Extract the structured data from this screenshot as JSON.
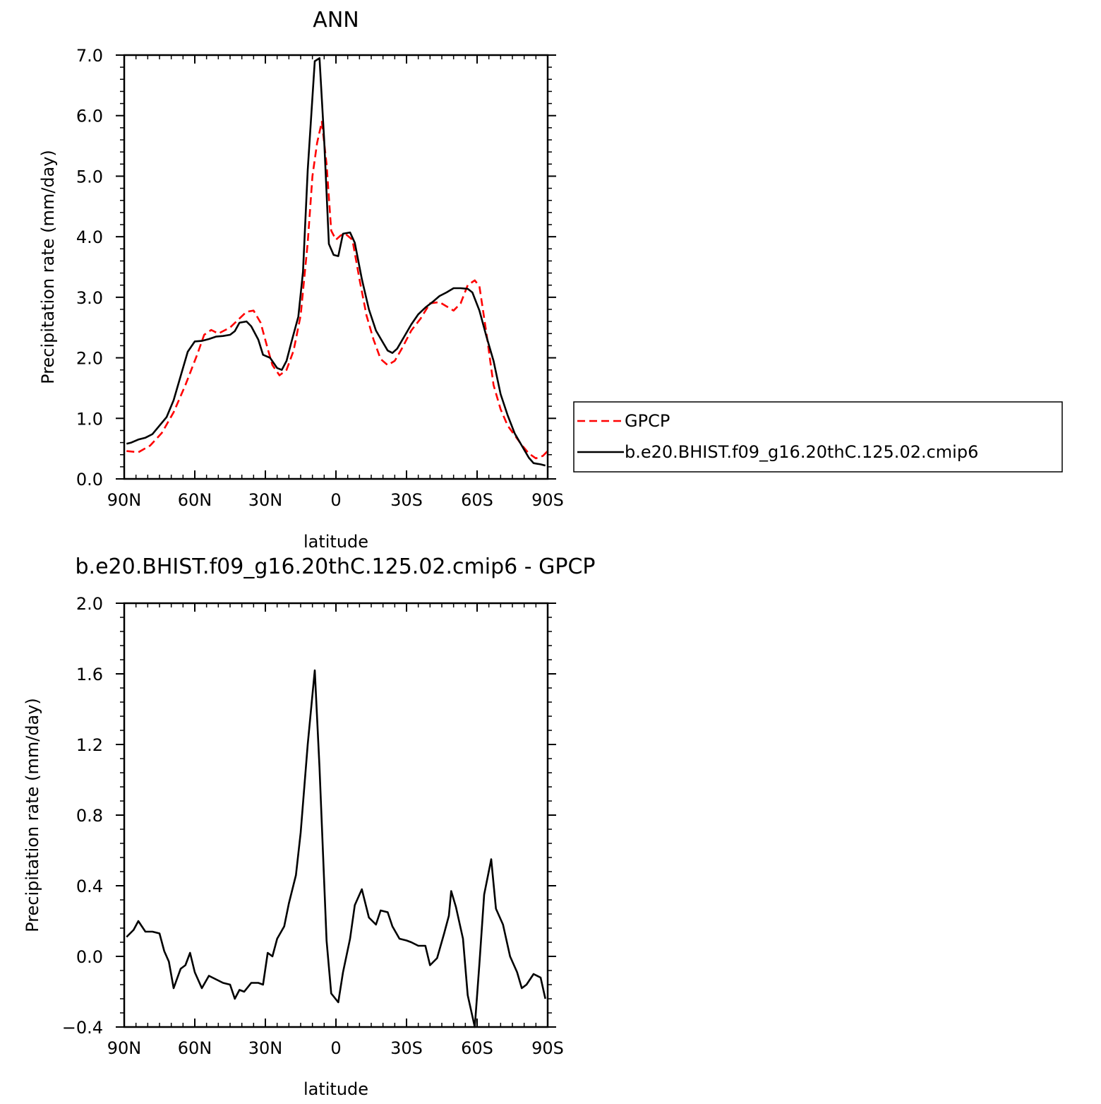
{
  "chart_data": [
    {
      "type": "line",
      "title": "ANN",
      "xlabel": "latitude",
      "ylabel": "Precipitation rate (mm/day)",
      "xlim": [
        90,
        -90
      ],
      "ylim": [
        0,
        7
      ],
      "xticks": [
        {
          "v": 90,
          "label": "90N"
        },
        {
          "v": 60,
          "label": "60N"
        },
        {
          "v": 30,
          "label": "30N"
        },
        {
          "v": 0,
          "label": "0"
        },
        {
          "v": -30,
          "label": "30S"
        },
        {
          "v": -60,
          "label": "60S"
        },
        {
          "v": -90,
          "label": "90S"
        }
      ],
      "yticks": [
        {
          "v": 0,
          "label": "0.0"
        },
        {
          "v": 1,
          "label": "1.0"
        },
        {
          "v": 2,
          "label": "2.0"
        },
        {
          "v": 3,
          "label": "3.0"
        },
        {
          "v": 4,
          "label": "4.0"
        },
        {
          "v": 5,
          "label": "5.0"
        },
        {
          "v": 6,
          "label": "6.0"
        },
        {
          "v": 7,
          "label": "7.0"
        }
      ],
      "legend": "right",
      "series": [
        {
          "name": "GPCP",
          "color": "#ff0000",
          "dash": "dashed",
          "points": [
            [
              89,
              0.46
            ],
            [
              84,
              0.44
            ],
            [
              79,
              0.55
            ],
            [
              74,
              0.76
            ],
            [
              69,
              1.1
            ],
            [
              64,
              1.55
            ],
            [
              59,
              2.05
            ],
            [
              56,
              2.38
            ],
            [
              53,
              2.46
            ],
            [
              50,
              2.4
            ],
            [
              45,
              2.5
            ],
            [
              41,
              2.65
            ],
            [
              38,
              2.76
            ],
            [
              35,
              2.78
            ],
            [
              32,
              2.58
            ],
            [
              29,
              2.15
            ],
            [
              27,
              1.88
            ],
            [
              24,
              1.71
            ],
            [
              21,
              1.8
            ],
            [
              18,
              2.12
            ],
            [
              15,
              2.7
            ],
            [
              12,
              3.9
            ],
            [
              10,
              5.0
            ],
            [
              8,
              5.55
            ],
            [
              6,
              5.9
            ],
            [
              4,
              5.2
            ],
            [
              2,
              4.1
            ],
            [
              0,
              3.95
            ],
            [
              -2,
              4.02
            ],
            [
              -4,
              4.05
            ],
            [
              -7,
              3.95
            ],
            [
              -10,
              3.3
            ],
            [
              -13,
              2.7
            ],
            [
              -16,
              2.3
            ],
            [
              -19,
              1.98
            ],
            [
              -22,
              1.88
            ],
            [
              -25,
              1.95
            ],
            [
              -28,
              2.15
            ],
            [
              -32,
              2.45
            ],
            [
              -36,
              2.65
            ],
            [
              -40,
              2.9
            ],
            [
              -44,
              2.92
            ],
            [
              -47,
              2.85
            ],
            [
              -50,
              2.78
            ],
            [
              -53,
              2.9
            ],
            [
              -56,
              3.2
            ],
            [
              -59,
              3.28
            ],
            [
              -61,
              3.18
            ],
            [
              -64,
              2.4
            ],
            [
              -67,
              1.55
            ],
            [
              -70,
              1.15
            ],
            [
              -73,
              0.88
            ],
            [
              -76,
              0.72
            ],
            [
              -79,
              0.56
            ],
            [
              -82,
              0.42
            ],
            [
              -85,
              0.34
            ],
            [
              -88,
              0.38
            ],
            [
              -90,
              0.46
            ]
          ]
        },
        {
          "name": "b.e20.BHIST.f09_g16.20thC.125.02.cmip6",
          "color": "#000000",
          "dash": "solid",
          "points": [
            [
              89,
              0.58
            ],
            [
              87,
              0.6
            ],
            [
              84,
              0.65
            ],
            [
              81,
              0.68
            ],
            [
              78,
              0.74
            ],
            [
              75,
              0.88
            ],
            [
              72,
              1.02
            ],
            [
              69,
              1.3
            ],
            [
              66,
              1.7
            ],
            [
              63,
              2.1
            ],
            [
              60,
              2.27
            ],
            [
              57,
              2.28
            ],
            [
              54,
              2.31
            ],
            [
              51,
              2.35
            ],
            [
              48,
              2.36
            ],
            [
              45,
              2.38
            ],
            [
              43,
              2.44
            ],
            [
              41,
              2.58
            ],
            [
              38,
              2.6
            ],
            [
              36,
              2.52
            ],
            [
              33,
              2.3
            ],
            [
              31,
              2.05
            ],
            [
              28,
              2.0
            ],
            [
              25,
              1.83
            ],
            [
              23,
              1.8
            ],
            [
              21,
              1.95
            ],
            [
              19,
              2.25
            ],
            [
              16,
              2.68
            ],
            [
              14,
              3.42
            ],
            [
              12,
              5.1
            ],
            [
              9,
              6.9
            ],
            [
              7,
              6.95
            ],
            [
              5,
              5.6
            ],
            [
              3,
              3.88
            ],
            [
              1,
              3.7
            ],
            [
              -1,
              3.68
            ],
            [
              -3,
              4.05
            ],
            [
              -6,
              4.07
            ],
            [
              -8,
              3.9
            ],
            [
              -11,
              3.3
            ],
            [
              -14,
              2.8
            ],
            [
              -17,
              2.45
            ],
            [
              -20,
              2.25
            ],
            [
              -22,
              2.12
            ],
            [
              -24,
              2.08
            ],
            [
              -26,
              2.15
            ],
            [
              -29,
              2.35
            ],
            [
              -32,
              2.55
            ],
            [
              -35,
              2.72
            ],
            [
              -38,
              2.83
            ],
            [
              -41,
              2.92
            ],
            [
              -44,
              3.02
            ],
            [
              -47,
              3.08
            ],
            [
              -50,
              3.15
            ],
            [
              -53,
              3.15
            ],
            [
              -56,
              3.14
            ],
            [
              -58,
              3.08
            ],
            [
              -61,
              2.78
            ],
            [
              -64,
              2.35
            ],
            [
              -67,
              1.95
            ],
            [
              -70,
              1.4
            ],
            [
              -73,
              1.05
            ],
            [
              -76,
              0.75
            ],
            [
              -79,
              0.55
            ],
            [
              -82,
              0.35
            ],
            [
              -84,
              0.26
            ],
            [
              -87,
              0.24
            ],
            [
              -89,
              0.22
            ]
          ]
        }
      ]
    },
    {
      "type": "line",
      "title": "b.e20.BHIST.f09_g16.20thC.125.02.cmip6 - GPCP",
      "xlabel": "latitude",
      "ylabel": "Precipitation rate (mm/day)",
      "xlim": [
        90,
        -90
      ],
      "ylim": [
        -0.4,
        2.0
      ],
      "xticks": [
        {
          "v": 90,
          "label": "90N"
        },
        {
          "v": 60,
          "label": "60N"
        },
        {
          "v": 30,
          "label": "30N"
        },
        {
          "v": 0,
          "label": "0"
        },
        {
          "v": -30,
          "label": "30S"
        },
        {
          "v": -60,
          "label": "60S"
        },
        {
          "v": -90,
          "label": "90S"
        }
      ],
      "yticks": [
        {
          "v": -0.4,
          "label": "−0.4"
        },
        {
          "v": 0,
          "label": "0.0"
        },
        {
          "v": 0.4,
          "label": "0.4"
        },
        {
          "v": 0.8,
          "label": "0.8"
        },
        {
          "v": 1.2,
          "label": "1.2"
        },
        {
          "v": 1.6,
          "label": "1.6"
        },
        {
          "v": 2.0,
          "label": "2.0"
        }
      ],
      "series": [
        {
          "color": "#000000",
          "dash": "solid",
          "points": [
            [
              89,
              0.11
            ],
            [
              86,
              0.15
            ],
            [
              84,
              0.2
            ],
            [
              81,
              0.14
            ],
            [
              78,
              0.14
            ],
            [
              75,
              0.13
            ],
            [
              73,
              0.03
            ],
            [
              71,
              -0.03
            ],
            [
              69,
              -0.18
            ],
            [
              66,
              -0.07
            ],
            [
              64,
              -0.05
            ],
            [
              62,
              0.02
            ],
            [
              60,
              -0.09
            ],
            [
              57,
              -0.18
            ],
            [
              54,
              -0.11
            ],
            [
              51,
              -0.13
            ],
            [
              48,
              -0.15
            ],
            [
              45,
              -0.16
            ],
            [
              43,
              -0.24
            ],
            [
              41,
              -0.19
            ],
            [
              39,
              -0.2
            ],
            [
              36,
              -0.15
            ],
            [
              33,
              -0.15
            ],
            [
              31,
              -0.16
            ],
            [
              29,
              0.02
            ],
            [
              27,
              0.0
            ],
            [
              25,
              0.1
            ],
            [
              22,
              0.17
            ],
            [
              20,
              0.3
            ],
            [
              17,
              0.46
            ],
            [
              15,
              0.7
            ],
            [
              12,
              1.2
            ],
            [
              9,
              1.62
            ],
            [
              7,
              1.07
            ],
            [
              4,
              0.09
            ],
            [
              2,
              -0.21
            ],
            [
              -1,
              -0.26
            ],
            [
              -3,
              -0.09
            ],
            [
              -6,
              0.1
            ],
            [
              -8,
              0.29
            ],
            [
              -11,
              0.38
            ],
            [
              -14,
              0.22
            ],
            [
              -17,
              0.18
            ],
            [
              -19,
              0.26
            ],
            [
              -22,
              0.25
            ],
            [
              -24,
              0.17
            ],
            [
              -27,
              0.1
            ],
            [
              -30,
              0.09
            ],
            [
              -32,
              0.08
            ],
            [
              -35,
              0.06
            ],
            [
              -38,
              0.06
            ],
            [
              -40,
              -0.05
            ],
            [
              -43,
              -0.01
            ],
            [
              -46,
              0.13
            ],
            [
              -48,
              0.23
            ],
            [
              -49,
              0.37
            ],
            [
              -51,
              0.28
            ],
            [
              -54,
              0.1
            ],
            [
              -56,
              -0.22
            ],
            [
              -59,
              -0.4
            ],
            [
              -61,
              -0.04
            ],
            [
              -63,
              0.35
            ],
            [
              -66,
              0.55
            ],
            [
              -68,
              0.27
            ],
            [
              -71,
              0.18
            ],
            [
              -74,
              0.0
            ],
            [
              -77,
              -0.09
            ],
            [
              -79,
              -0.18
            ],
            [
              -81,
              -0.16
            ],
            [
              -84,
              -0.1
            ],
            [
              -87,
              -0.12
            ],
            [
              -89,
              -0.24
            ]
          ]
        }
      ]
    }
  ]
}
